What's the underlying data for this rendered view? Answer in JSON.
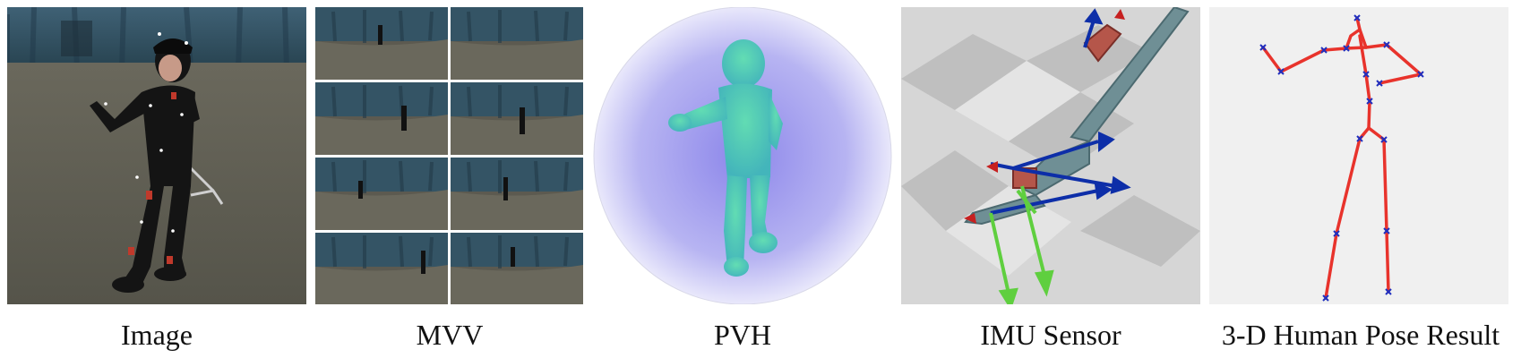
{
  "figure": {
    "panels": [
      {
        "id": "image",
        "caption": "Image"
      },
      {
        "id": "mvv",
        "caption": "MVV"
      },
      {
        "id": "pvh",
        "caption": "PVH"
      },
      {
        "id": "imu",
        "caption": "IMU Sensor"
      },
      {
        "id": "pose",
        "caption": "3-D Human Pose Result"
      }
    ],
    "colors": {
      "studio_wall": "#2b4a5c",
      "studio_floor": "#5f5d52",
      "suit": "#141414",
      "pvh_body": "#4fcfae",
      "pvh_glow": "#a7a3ef",
      "imu_segment": "#6f8f95",
      "imu_axis_blue": "#0d2ea8",
      "imu_axis_green": "#5fcf3f",
      "imu_axis_red": "#c62020",
      "skeleton_red": "#e8332c",
      "joint_blue": "#1f2fbf",
      "pose_bg": "#f0f0f0"
    }
  }
}
